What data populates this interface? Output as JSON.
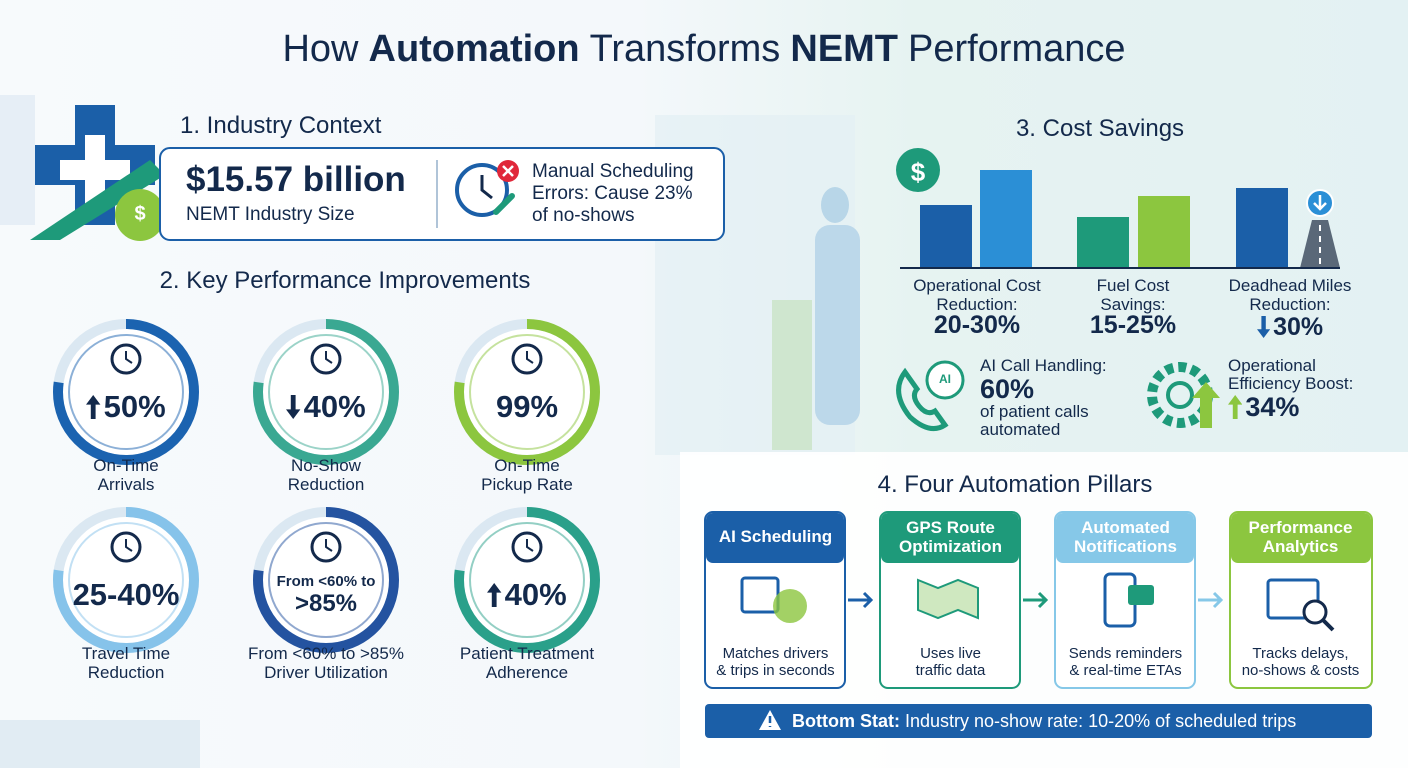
{
  "title_parts": [
    "How",
    "Automation",
    "Transforms",
    "NEMT",
    "Performance"
  ],
  "industry_context": {
    "heading": "1. Industry Context",
    "stat": "$15.57 billion",
    "stat_label": "NEMT Industry Size",
    "icon_symbol": "$",
    "note_lines": [
      "Manual Scheduling",
      "Errors: Cause 23%",
      "of no-shows"
    ]
  },
  "performance": {
    "heading": "2. Key Performance Improvements",
    "items": [
      {
        "value_lines": [
          "50%"
        ],
        "direction": "up",
        "label_lines": [
          "On-Time",
          "Arrivals"
        ],
        "color": "#1b63b0"
      },
      {
        "value_lines": [
          "40%"
        ],
        "direction": "down",
        "label_lines": [
          "No-Show",
          "Reduction"
        ],
        "color": "#3aa892"
      },
      {
        "value_lines": [
          "99%"
        ],
        "label_lines": [
          "On-Time",
          "Pickup Rate"
        ],
        "color": "#8cc63f"
      },
      {
        "value_lines": [
          "25-40%"
        ],
        "label_lines": [
          "Travel Time",
          "Reduction"
        ],
        "color": "#86c3ea"
      },
      {
        "value_lines": [
          "From <60% to",
          ">85%"
        ],
        "label_lines": [
          "From <60% to >85%",
          "Driver Utilization"
        ],
        "color": "#2453a0"
      },
      {
        "value_lines": [
          "40%"
        ],
        "direction": "up",
        "label_lines": [
          "Patient Treatment",
          "Adherence"
        ],
        "color": "#2aa08a"
      }
    ]
  },
  "cost_savings": {
    "heading": "3. Cost Savings",
    "icon_symbol": "$",
    "items": [
      {
        "label_lines": [
          "Operational Cost",
          "Reduction:"
        ],
        "value": "20-30%"
      },
      {
        "label_lines": [
          "Fuel Cost",
          "Savings:"
        ],
        "value": "15-25%"
      },
      {
        "label_lines": [
          "Deadhead Miles",
          "Reduction:"
        ],
        "value": "30%",
        "direction": "down"
      }
    ],
    "highlights": [
      {
        "icon_label": "AI",
        "title_lines": [
          "AI Call Handling:"
        ],
        "value": "60%",
        "detail_lines": [
          "of patient calls",
          "automated"
        ]
      },
      {
        "title_lines": [
          "Operational",
          "Efficiency Boost:"
        ],
        "value": "34%",
        "direction": "up"
      }
    ]
  },
  "pillars": {
    "heading": "4. Four Automation Pillars",
    "items": [
      {
        "title_lines": [
          "AI Scheduling"
        ],
        "color": "#1b5fa8",
        "description_lines": [
          "Matches drivers",
          "& trips in seconds"
        ]
      },
      {
        "title_lines": [
          "GPS Route",
          "Optimization"
        ],
        "color": "#1e9a7a",
        "description_lines": [
          "Uses live",
          "traffic data"
        ]
      },
      {
        "title_lines": [
          "Automated",
          "Notifications"
        ],
        "color": "#86c8e8",
        "description_lines": [
          "Sends reminders",
          "& real-time ETAs"
        ]
      },
      {
        "title_lines": [
          "Performance",
          "Analytics"
        ],
        "color": "#8cc63f",
        "description_lines": [
          "Tracks delays,",
          "no-shows & costs"
        ]
      }
    ]
  },
  "bottom_stat": {
    "label": "Bottom Stat:",
    "text": "Industry no-show rate: 10-20% of scheduled trips"
  }
}
